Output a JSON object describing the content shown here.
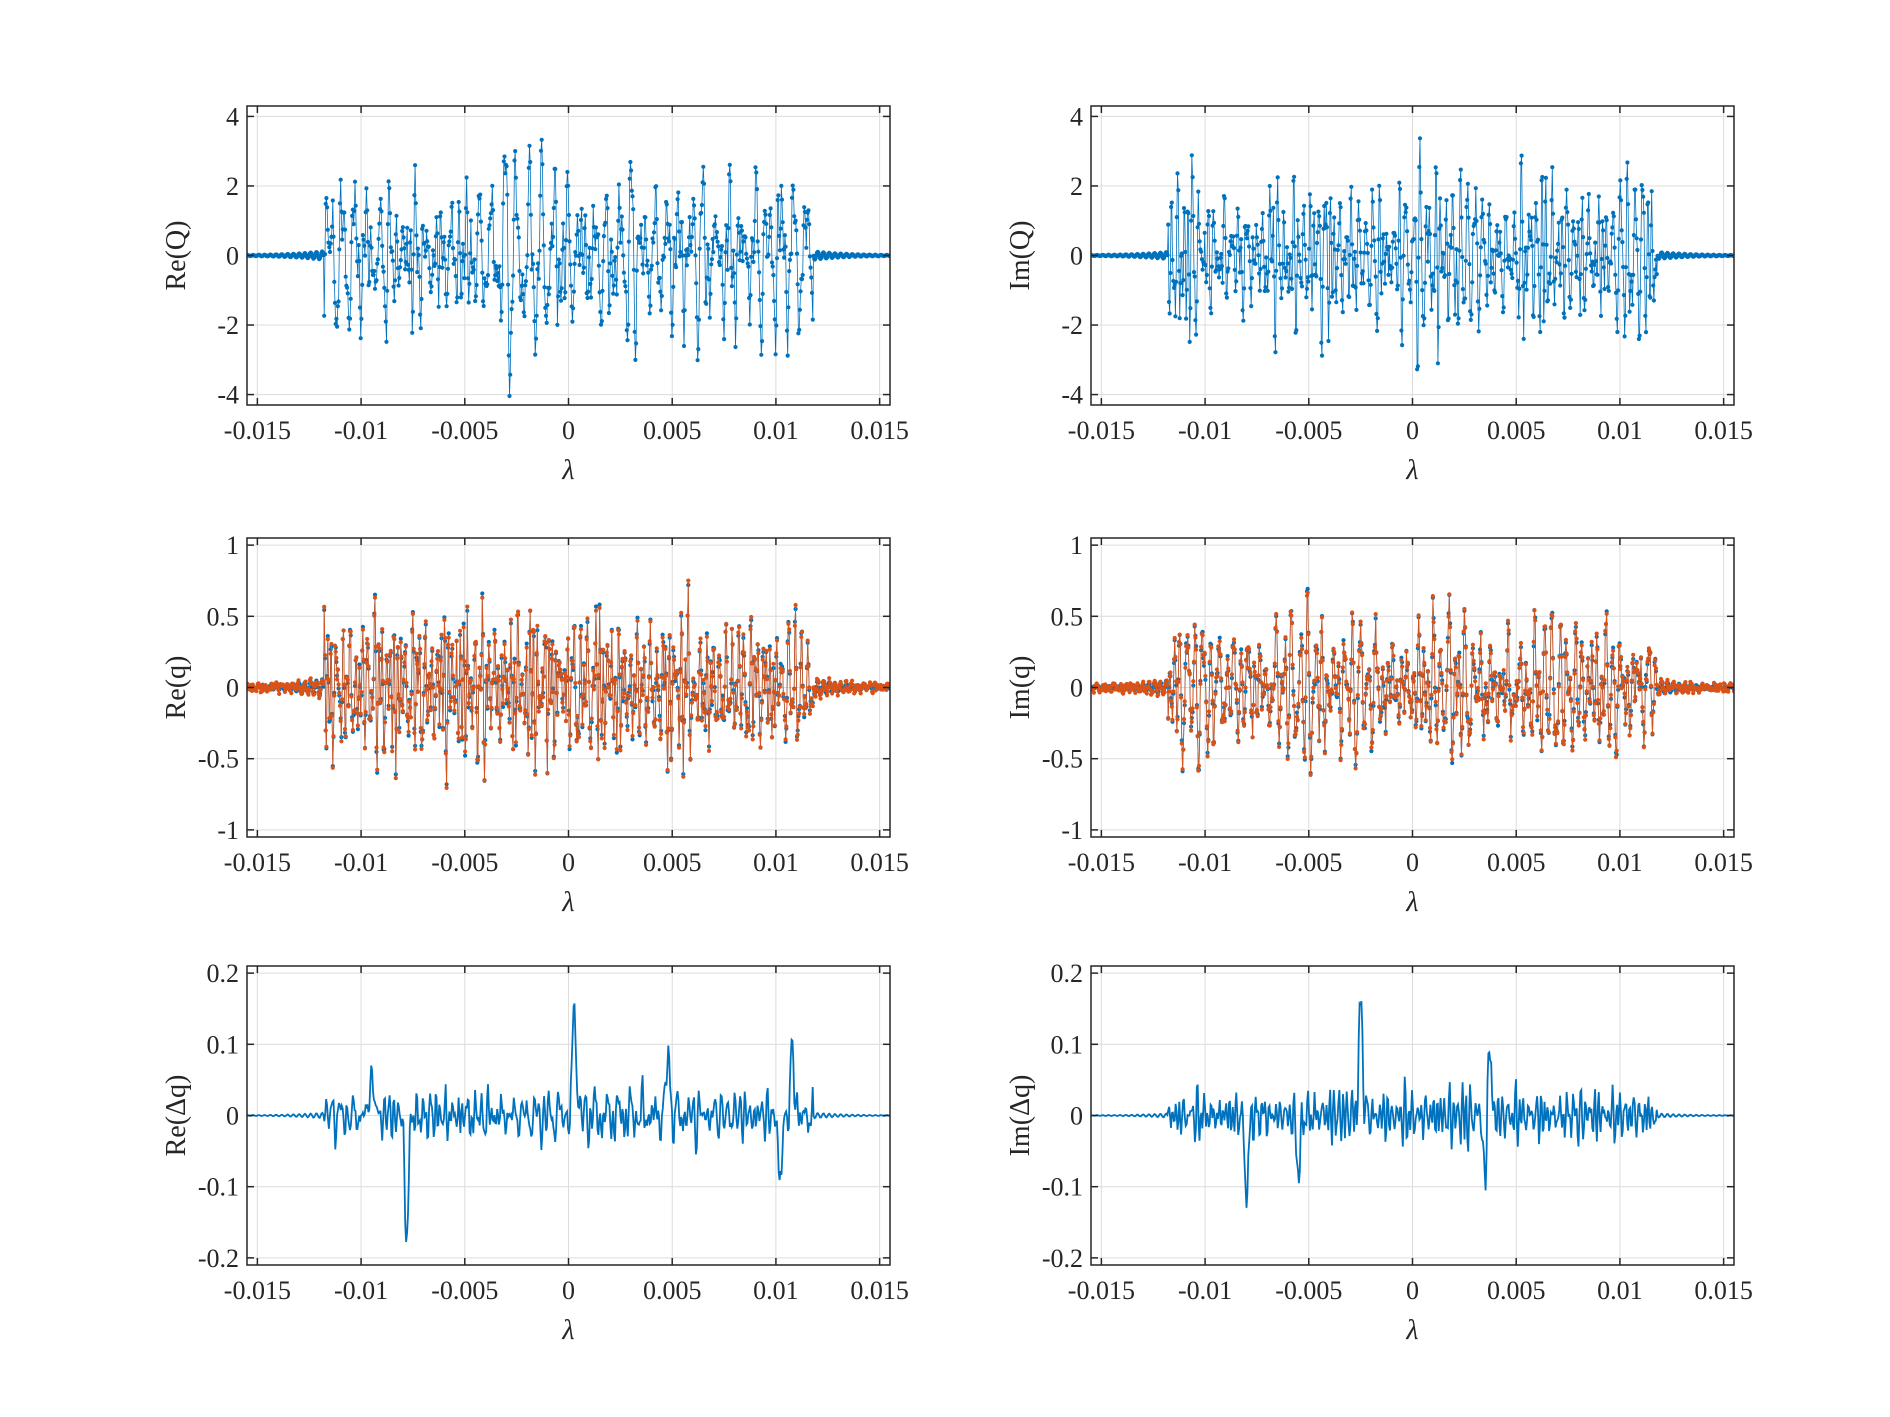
{
  "figure": {
    "background": "#ffffff"
  },
  "colors": {
    "series1": "#0072BD",
    "series2": "#D95319",
    "axis": "#262626",
    "grid": "#dcdcdc"
  },
  "chart_data": [
    {
      "id": "reQ",
      "type": "line",
      "marker": "dot",
      "xlabel": "λ",
      "ylabel": "Re(Q)",
      "xlim": [
        -0.0155,
        0.0155
      ],
      "ylim": [
        -4.3,
        4.3
      ],
      "xticks": [
        -0.015,
        -0.01,
        -0.005,
        0,
        0.005,
        0.01,
        0.015
      ],
      "xtick_labels": [
        "-0.015",
        "-0.01",
        "-0.005",
        "0",
        "0.005",
        "0.01",
        "0.015"
      ],
      "yticks": [
        -4,
        -2,
        0,
        2,
        4
      ],
      "ytick_labels": [
        "-4",
        "-2",
        "0",
        "2",
        "4"
      ],
      "grid": true,
      "signal": {
        "amp": 2.0,
        "tail_amp": 0.12,
        "edge": 0.0118,
        "seed": 11
      },
      "series": [
        {
          "color": "#0072BD"
        }
      ]
    },
    {
      "id": "imQ",
      "type": "line",
      "marker": "dot",
      "xlabel": "λ",
      "ylabel": "Im(Q)",
      "xlim": [
        -0.0155,
        0.0155
      ],
      "ylim": [
        -4.3,
        4.3
      ],
      "xticks": [
        -0.015,
        -0.01,
        -0.005,
        0,
        0.005,
        0.01,
        0.015
      ],
      "xtick_labels": [
        "-0.015",
        "-0.01",
        "-0.005",
        "0",
        "0.005",
        "0.01",
        "0.015"
      ],
      "yticks": [
        -4,
        -2,
        0,
        2,
        4
      ],
      "ytick_labels": [
        "-4",
        "-2",
        "0",
        "2",
        "4"
      ],
      "grid": true,
      "signal": {
        "amp": 2.0,
        "tail_amp": 0.1,
        "edge": 0.0118,
        "seed": 23
      },
      "series": [
        {
          "color": "#0072BD"
        }
      ]
    },
    {
      "id": "req",
      "type": "line",
      "marker": "dot",
      "xlabel": "λ",
      "ylabel": "Re(q)",
      "xlim": [
        -0.0155,
        0.0155
      ],
      "ylim": [
        -1.05,
        1.05
      ],
      "xticks": [
        -0.015,
        -0.01,
        -0.005,
        0,
        0.005,
        0.01,
        0.015
      ],
      "xtick_labels": [
        "-0.015",
        "-0.01",
        "-0.005",
        "0",
        "0.005",
        "0.01",
        "0.015"
      ],
      "yticks": [
        -1,
        -0.5,
        0,
        0.5,
        1
      ],
      "ytick_labels": [
        "-1",
        "-0.5",
        "0",
        "0.5",
        "1"
      ],
      "grid": true,
      "signal": {
        "amp": 0.52,
        "tail_amp": 0.06,
        "edge": 0.0118,
        "seed": 37
      },
      "series": [
        {
          "color": "#0072BD"
        },
        {
          "color": "#D95319"
        }
      ]
    },
    {
      "id": "imq",
      "type": "line",
      "marker": "dot",
      "xlabel": "λ",
      "ylabel": "Im(q)",
      "xlim": [
        -0.0155,
        0.0155
      ],
      "ylim": [
        -1.05,
        1.05
      ],
      "xticks": [
        -0.015,
        -0.01,
        -0.005,
        0,
        0.005,
        0.01,
        0.015
      ],
      "xtick_labels": [
        "-0.015",
        "-0.01",
        "-0.005",
        "0",
        "0.005",
        "0.01",
        "0.015"
      ],
      "yticks": [
        -1,
        -0.5,
        0,
        0.5,
        1
      ],
      "ytick_labels": [
        "-1",
        "-0.5",
        "0",
        "0.5",
        "1"
      ],
      "grid": true,
      "signal": {
        "amp": 0.52,
        "tail_amp": 0.05,
        "edge": 0.0118,
        "seed": 53
      },
      "series": [
        {
          "color": "#0072BD"
        },
        {
          "color": "#D95319"
        }
      ]
    },
    {
      "id": "redq",
      "type": "line",
      "marker": "none",
      "xlabel": "λ",
      "ylabel": "Re(Δq)",
      "xlim": [
        -0.0155,
        0.0155
      ],
      "ylim": [
        -0.21,
        0.21
      ],
      "xticks": [
        -0.015,
        -0.01,
        -0.005,
        0,
        0.005,
        0.01,
        0.015
      ],
      "xtick_labels": [
        "-0.015",
        "-0.01",
        "-0.005",
        "0",
        "0.005",
        "0.01",
        "0.015"
      ],
      "yticks": [
        -0.2,
        -0.1,
        0,
        0.1,
        0.2
      ],
      "ytick_labels": [
        "-0.2",
        "-0.1",
        "0",
        "0.1",
        "0.2"
      ],
      "grid": true,
      "signal": {
        "amp": 0.035,
        "tail_amp": 0.004,
        "edge": 0.0118,
        "seed": 71,
        "spikes": [
          [
            -0.0078,
            -0.18
          ],
          [
            0.0003,
            0.16
          ],
          [
            0.0048,
            0.09
          ],
          [
            0.0102,
            -0.1
          ],
          [
            0.0108,
            0.095
          ],
          [
            -0.0095,
            0.07
          ]
        ]
      },
      "series": [
        {
          "color": "#0072BD"
        }
      ]
    },
    {
      "id": "imdq",
      "type": "line",
      "marker": "none",
      "xlabel": "λ",
      "ylabel": "Im(Δq)",
      "xlim": [
        -0.0155,
        0.0155
      ],
      "ylim": [
        -0.21,
        0.21
      ],
      "xticks": [
        -0.015,
        -0.01,
        -0.005,
        0,
        0.005,
        0.01,
        0.015
      ],
      "xtick_labels": [
        "-0.015",
        "-0.01",
        "-0.005",
        "0",
        "0.005",
        "0.01",
        "0.015"
      ],
      "yticks": [
        -0.2,
        -0.1,
        0,
        0.1,
        0.2
      ],
      "ytick_labels": [
        "-0.2",
        "-0.1",
        "0",
        "0.1",
        "0.2"
      ],
      "grid": true,
      "signal": {
        "amp": 0.035,
        "tail_amp": 0.003,
        "edge": 0.0118,
        "seed": 89,
        "spikes": [
          [
            -0.0025,
            0.165
          ],
          [
            -0.008,
            -0.115
          ],
          [
            0.0037,
            0.11
          ],
          [
            0.0035,
            -0.1
          ],
          [
            -0.0055,
            -0.085
          ]
        ]
      },
      "series": [
        {
          "color": "#0072BD"
        }
      ]
    }
  ]
}
